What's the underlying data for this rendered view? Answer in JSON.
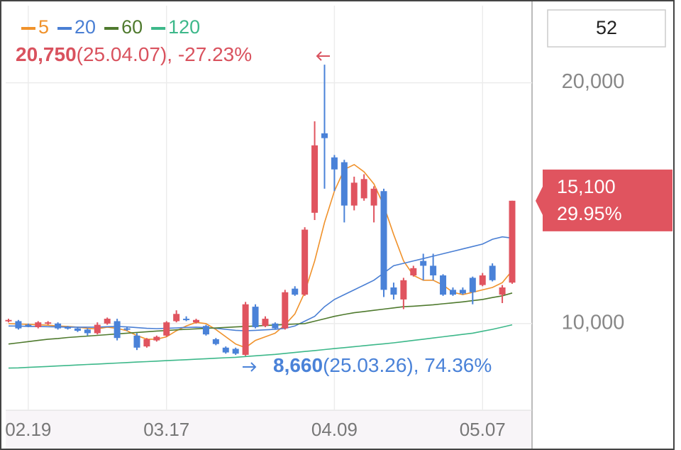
{
  "chart_data": {
    "type": "candlestick",
    "categories": [
      null,
      null,
      "02.19",
      null,
      null,
      null,
      null,
      null,
      null,
      null,
      null,
      null,
      null,
      null,
      null,
      null,
      "03.17",
      null,
      null,
      null,
      null,
      null,
      null,
      null,
      null,
      null,
      null,
      null,
      null,
      null,
      null,
      null,
      null,
      "04.09",
      null,
      null,
      null,
      null,
      null,
      null,
      null,
      null,
      null,
      null,
      null,
      null,
      null,
      null,
      "05.07",
      null,
      null,
      null
    ],
    "candles": {
      "open": [
        10100,
        10100,
        9950,
        9850,
        10000,
        10000,
        9850,
        9800,
        9750,
        9600,
        10000,
        10100,
        9800,
        9500,
        9050,
        9300,
        9500,
        10100,
        10200,
        10050,
        9900,
        9350,
        9000,
        8950,
        8700,
        10700,
        9900,
        10000,
        9800,
        11450,
        11200,
        14600,
        17900,
        16900,
        16700,
        14900,
        15200,
        14900,
        15500,
        11500,
        11000,
        12000,
        12600,
        12400,
        12000,
        11400,
        11400,
        11900,
        11600,
        12400,
        11200,
        11700
      ],
      "high": [
        10200,
        10150,
        10000,
        10100,
        10100,
        10050,
        9900,
        9850,
        9800,
        10050,
        10250,
        10200,
        9850,
        9600,
        9400,
        9500,
        10100,
        10550,
        10300,
        10200,
        9950,
        9400,
        9050,
        9000,
        10900,
        10800,
        10300,
        10050,
        11400,
        11550,
        14000,
        18400,
        20750,
        17000,
        16800,
        16100,
        16200,
        15700,
        15600,
        11700,
        11900,
        12400,
        12900,
        12900,
        12050,
        11500,
        11500,
        11950,
        12100,
        12500,
        11600,
        15100
      ],
      "low": [
        10050,
        9750,
        9850,
        9800,
        9950,
        9750,
        9750,
        9650,
        9500,
        9550,
        9950,
        9300,
        9700,
        8900,
        9000,
        9250,
        9450,
        10050,
        10100,
        10000,
        9500,
        9100,
        8750,
        8700,
        8660,
        9800,
        9850,
        9750,
        9750,
        11150,
        11150,
        14300,
        15600,
        15500,
        14200,
        14700,
        15100,
        14200,
        11100,
        11000,
        10600,
        11950,
        11800,
        11800,
        11150,
        11150,
        11200,
        10800,
        11550,
        11750,
        10850,
        11650
      ],
      "close": [
        10150,
        9800,
        9900,
        10050,
        10050,
        9800,
        9800,
        9700,
        9600,
        9950,
        10200,
        9400,
        9750,
        9000,
        9350,
        9450,
        10050,
        10400,
        10150,
        10150,
        9550,
        9150,
        8800,
        8750,
        10800,
        9850,
        10200,
        9800,
        11300,
        11200,
        13900,
        17400,
        17700,
        16400,
        14900,
        15850,
        16000,
        15600,
        11400,
        11200,
        11800,
        12300,
        12400,
        12000,
        11200,
        11200,
        11250,
        11300,
        12000,
        11800,
        11500,
        15100
      ],
      "up_color": "#e0545f",
      "down_color": "#4a82d8"
    },
    "series": [
      {
        "name": "5",
        "color": "#f0922b",
        "values": [
          10000,
          9980,
          9970,
          9950,
          9930,
          9900,
          9880,
          9850,
          9800,
          9780,
          9850,
          9800,
          9700,
          9500,
          9350,
          9350,
          9450,
          9700,
          9900,
          10050,
          10000,
          9750,
          9450,
          9150,
          9000,
          9300,
          9450,
          9600,
          9950,
          10400,
          11300,
          12600,
          14200,
          15500,
          16400,
          16600,
          16300,
          15800,
          14900,
          13700,
          12600,
          12000,
          11800,
          11800,
          11600,
          11300,
          11200,
          11300,
          11400,
          11500,
          11700,
          12200
        ]
      },
      {
        "name": "20",
        "color": "#4a7fd4",
        "values": [
          9900,
          9900,
          9880,
          9880,
          9870,
          9860,
          9850,
          9850,
          9850,
          9850,
          9870,
          9880,
          9860,
          9830,
          9800,
          9790,
          9800,
          9820,
          9840,
          9850,
          9830,
          9800,
          9760,
          9720,
          9700,
          9720,
          9740,
          9760,
          9800,
          9900,
          10100,
          10300,
          10700,
          11000,
          11200,
          11400,
          11600,
          11800,
          12100,
          12400,
          12500,
          12600,
          12700,
          12800,
          12900,
          13000,
          13100,
          13200,
          13300,
          13500,
          13600,
          13550
        ]
      },
      {
        "name": "60",
        "color": "#4f7a2e",
        "values": [
          9150,
          9200,
          9250,
          9300,
          9350,
          9380,
          9420,
          9450,
          9480,
          9510,
          9540,
          9570,
          9600,
          9630,
          9660,
          9690,
          9710,
          9740,
          9760,
          9780,
          9800,
          9820,
          9840,
          9860,
          9880,
          9900,
          9920,
          9940,
          9960,
          9980,
          10000,
          10100,
          10200,
          10300,
          10380,
          10450,
          10500,
          10550,
          10600,
          10650,
          10700,
          10720,
          10750,
          10780,
          10820,
          10860,
          10900,
          10950,
          11000,
          11080,
          11150,
          11270
        ]
      },
      {
        "name": "120",
        "color": "#3db88a",
        "values": [
          8150,
          8160,
          8180,
          8200,
          8220,
          8240,
          8260,
          8280,
          8300,
          8320,
          8340,
          8360,
          8380,
          8400,
          8420,
          8440,
          8460,
          8480,
          8500,
          8520,
          8540,
          8560,
          8580,
          8600,
          8630,
          8660,
          8690,
          8720,
          8760,
          8800,
          8840,
          8880,
          8920,
          8960,
          9000,
          9040,
          9080,
          9120,
          9160,
          9200,
          9250,
          9300,
          9350,
          9400,
          9450,
          9500,
          9550,
          9600,
          9680,
          9760,
          9850,
          9950
        ]
      }
    ],
    "ylim": [
      6400,
      23200
    ],
    "yticks": [
      {
        "value": 10000,
        "label": "10,000"
      },
      {
        "value": 20000,
        "label": "20,000"
      }
    ],
    "grid": true,
    "annotations": [
      {
        "label": "20,750",
        "value": 20750,
        "text": "(25.04.07), -27.23%",
        "color": "#d9525e"
      },
      {
        "label": "8,660",
        "value": 8660,
        "text": "(25.03.26), 74.36%",
        "color": "#4a82d8"
      }
    ],
    "current": {
      "label": "15,100",
      "value": 15100,
      "change": "29.95%",
      "color": "#e0545f"
    },
    "count": 52
  }
}
